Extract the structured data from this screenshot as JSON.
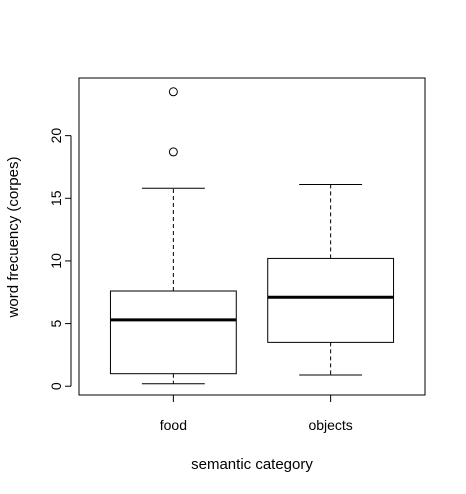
{
  "chart_data": {
    "type": "boxplot",
    "title": "",
    "xlabel": "semantic category",
    "ylabel": "word frecuency (corpes)",
    "categories": [
      "food",
      "objects"
    ],
    "ylim": [
      -0.7,
      24.6
    ],
    "yticks": [
      0,
      5,
      10,
      15,
      20
    ],
    "ytick_labels": [
      "0",
      "5",
      "10",
      "15",
      "20"
    ],
    "boxes": [
      {
        "category": "food",
        "whisker_low": 0.2,
        "q1": 1.0,
        "median": 5.3,
        "q3": 7.6,
        "whisker_high": 15.8,
        "outliers": [
          18.7,
          23.5
        ]
      },
      {
        "category": "objects",
        "whisker_low": 0.9,
        "q1": 3.5,
        "median": 7.1,
        "q3": 10.2,
        "whisker_high": 16.1,
        "outliers": []
      }
    ],
    "grid": false,
    "legend": "none"
  }
}
